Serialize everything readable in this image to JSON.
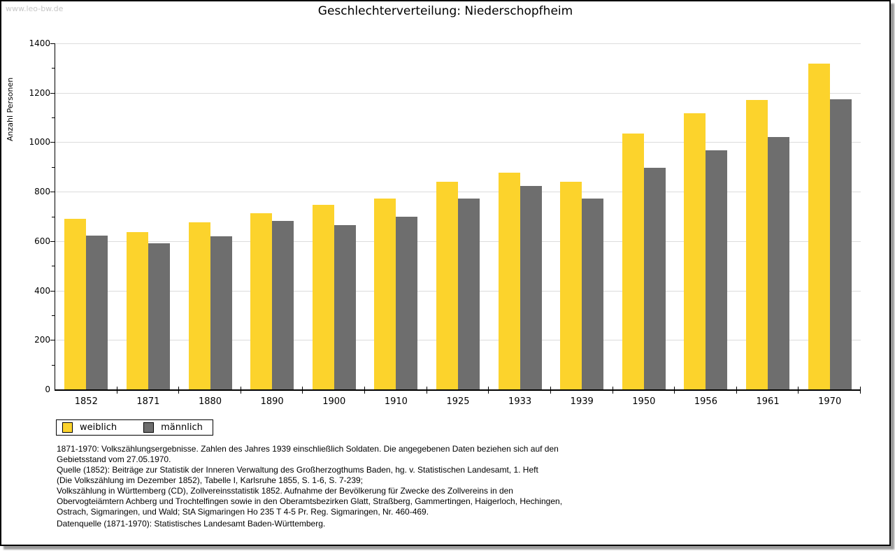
{
  "window": {
    "watermark": "www.leo-bw.de",
    "title": "Geschlechterverteilung: Niederschopfheim"
  },
  "chart_data": {
    "type": "bar",
    "title": "Geschlechterverteilung: Niederschopfheim",
    "xlabel": "",
    "ylabel": "Anzahl Personen",
    "ylim": [
      0,
      1400
    ],
    "ytick_step": 200,
    "yminor_step": 100,
    "grid": true,
    "legend_position": "bottom-left",
    "categories": [
      "1852",
      "1871",
      "1880",
      "1890",
      "1900",
      "1910",
      "1925",
      "1933",
      "1939",
      "1950",
      "1956",
      "1961",
      "1970"
    ],
    "series": [
      {
        "name": "weiblich",
        "color": "#fcd32c",
        "values": [
          690,
          637,
          677,
          713,
          746,
          772,
          841,
          877,
          841,
          1035,
          1116,
          1170,
          1318
        ]
      },
      {
        "name": "männlich",
        "color": "#6e6e6e",
        "values": [
          622,
          590,
          619,
          681,
          664,
          699,
          772,
          822,
          772,
          898,
          967,
          1021,
          1174
        ]
      }
    ]
  },
  "colors": {
    "weiblich": "#fcd32c",
    "maennlich": "#6e6e6e",
    "gridline": "#dcdcdc",
    "watermark": "#c6c6c6",
    "frame_border": "#000000",
    "shadow": "#9c9c9c"
  },
  "footnotes": {
    "lines": [
      "1871-1970: Volkszählungsergebnisse. Zahlen des Jahres 1939 einschließlich Soldaten. Die angegebenen Daten beziehen sich auf den",
      "Gebietsstand vom 27.05.1970.",
      "Quelle (1852): Beiträge zur Statistik der Inneren Verwaltung des Großherzogthums Baden, hg. v. Statistischen Landesamt, 1. Heft",
      "(Die Volkszählung im Dezember 1852), Tabelle I, Karlsruhe 1855, S. 1-6, S. 7-239;",
      "Volkszählung in Württemberg (CD), Zollvereinsstatistik 1852. Aufnahme der Bevölkerung für Zwecke des Zollvereins in den",
      "Obervogteiämtern Achberg und Trochtelfingen sowie in den Oberamtsbezirken Glatt, Straßberg, Gammertingen, Haigerloch, Hechingen,",
      "Ostrach, Sigmaringen, und Wald; StA Sigmaringen Ho 235 T 4-5 Pr. Reg. Sigmaringen, Nr. 460-469."
    ],
    "datasource": "Datenquelle (1871-1970): Statistisches Landesamt Baden-Württemberg."
  }
}
